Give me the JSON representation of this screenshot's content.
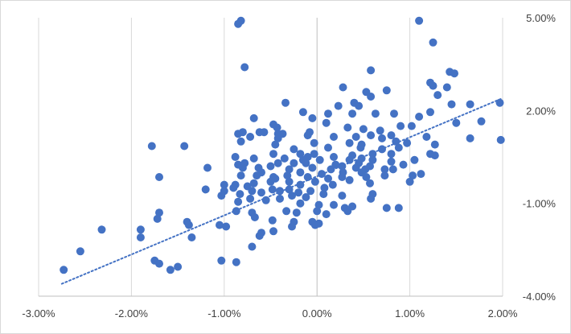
{
  "chart_data": {
    "type": "scatter",
    "title": "",
    "xlabel": "",
    "ylabel": "",
    "xlim": [
      -3.0,
      2.0
    ],
    "ylim": [
      -4.0,
      5.0
    ],
    "x_ticks": [
      -3,
      -2,
      -1,
      0,
      1,
      2
    ],
    "y_ticks": [
      -4,
      -1,
      2,
      5
    ],
    "x_tick_labels": [
      "-3.00%",
      "-2.00%",
      "-1.00%",
      "0.00%",
      "1.00%",
      "2.00%"
    ],
    "y_tick_labels": [
      "-4.00%",
      "-1.00%",
      "2.00%",
      "5.00%"
    ],
    "y_axis_position": "right",
    "gridlines": "vertical-major",
    "legend": "none",
    "marker_color": "#4472c4",
    "trendline": {
      "type": "linear",
      "style": "dotted",
      "color": "#4472c4",
      "start": [
        -2.75,
        -3.6
      ],
      "end": [
        2.0,
        2.4
      ]
    },
    "points": [
      [
        -0.85,
        4.8
      ],
      [
        -0.82,
        4.9
      ],
      [
        -0.78,
        3.4
      ],
      [
        1.1,
        4.9
      ],
      [
        1.25,
        4.2
      ],
      [
        0.58,
        3.3
      ],
      [
        1.43,
        3.25
      ],
      [
        1.48,
        3.2
      ],
      [
        1.22,
        2.9
      ],
      [
        1.25,
        2.8
      ],
      [
        1.4,
        2.75
      ],
      [
        0.28,
        2.75
      ],
      [
        0.53,
        2.6
      ],
      [
        0.75,
        2.65
      ],
      [
        0.58,
        2.45
      ],
      [
        1.3,
        2.5
      ],
      [
        0.45,
        2.15
      ],
      [
        0.4,
        2.25
      ],
      [
        0.23,
        2.15
      ],
      [
        1.45,
        2.2
      ],
      [
        1.65,
        2.2
      ],
      [
        1.97,
        2.25
      ],
      [
        -0.34,
        2.25
      ],
      [
        -0.15,
        1.95
      ],
      [
        0.12,
        1.9
      ],
      [
        0.38,
        1.9
      ],
      [
        0.63,
        1.9
      ],
      [
        0.83,
        1.9
      ],
      [
        1.22,
        1.95
      ],
      [
        1.1,
        1.8
      ],
      [
        -0.68,
        1.75
      ],
      [
        -0.05,
        1.75
      ],
      [
        1.5,
        1.6
      ],
      [
        1.77,
        1.65
      ],
      [
        0.9,
        1.5
      ],
      [
        1.02,
        1.5
      ],
      [
        0.1,
        1.6
      ],
      [
        -0.47,
        1.55
      ],
      [
        -0.43,
        1.45
      ],
      [
        0.33,
        1.45
      ],
      [
        -0.85,
        1.25
      ],
      [
        -0.8,
        1.3
      ],
      [
        -0.62,
        1.3
      ],
      [
        -0.57,
        1.3
      ],
      [
        -0.42,
        1.25
      ],
      [
        -0.37,
        1.25
      ],
      [
        -0.08,
        1.3
      ],
      [
        0.5,
        1.4
      ],
      [
        0.68,
        1.35
      ],
      [
        0.8,
        1.2
      ],
      [
        -0.72,
        1.15
      ],
      [
        -0.42,
        1.1
      ],
      [
        -0.1,
        1.2
      ],
      [
        0.18,
        1.15
      ],
      [
        0.42,
        1.15
      ],
      [
        0.58,
        1.2
      ],
      [
        0.7,
        1.1
      ],
      [
        1.18,
        1.15
      ],
      [
        1.65,
        1.1
      ],
      [
        1.98,
        1.05
      ],
      [
        0.85,
        1.0
      ],
      [
        0.97,
        0.95
      ],
      [
        -0.82,
        1.0
      ],
      [
        -0.45,
        0.9
      ],
      [
        -0.03,
        0.95
      ],
      [
        0.35,
        0.95
      ],
      [
        0.48,
        0.9
      ],
      [
        1.27,
        0.9
      ],
      [
        -1.78,
        0.85
      ],
      [
        -1.43,
        0.85
      ],
      [
        0.47,
        0.8
      ],
      [
        0.7,
        0.75
      ],
      [
        0.88,
        0.8
      ],
      [
        0.12,
        0.8
      ],
      [
        -0.25,
        0.75
      ],
      [
        -0.47,
        0.6
      ],
      [
        -0.03,
        0.6
      ],
      [
        0.18,
        0.5
      ],
      [
        0.38,
        0.55
      ],
      [
        0.6,
        0.6
      ],
      [
        0.8,
        0.6
      ],
      [
        1.22,
        0.6
      ],
      [
        1.27,
        0.55
      ],
      [
        -0.88,
        0.5
      ],
      [
        -0.68,
        0.45
      ],
      [
        -0.35,
        0.45
      ],
      [
        -0.15,
        0.4
      ],
      [
        -0.1,
        0.5
      ],
      [
        -0.18,
        0.6
      ],
      [
        0.03,
        0.4
      ],
      [
        0.35,
        0.4
      ],
      [
        0.48,
        0.45
      ],
      [
        0.6,
        0.4
      ],
      [
        0.8,
        0.35
      ],
      [
        1.05,
        0.4
      ],
      [
        -0.85,
        0.25
      ],
      [
        -0.78,
        0.3
      ],
      [
        -0.5,
        0.2
      ],
      [
        -0.42,
        0.3
      ],
      [
        -0.25,
        0.3
      ],
      [
        -0.12,
        0.3
      ],
      [
        0.2,
        0.25
      ],
      [
        0.45,
        0.3
      ],
      [
        0.57,
        0.2
      ],
      [
        0.93,
        0.25
      ],
      [
        -1.18,
        0.15
      ],
      [
        -0.8,
        0.15
      ],
      [
        -0.63,
        0.15
      ],
      [
        -0.3,
        0.1
      ],
      [
        -0.05,
        0.15
      ],
      [
        0.15,
        0.1
      ],
      [
        0.27,
        0.2
      ],
      [
        0.42,
        0.15
      ],
      [
        0.52,
        0.1
      ],
      [
        0.73,
        0.1
      ],
      [
        0.82,
        0.1
      ],
      [
        -0.6,
        0.0
      ],
      [
        -0.18,
        0.0
      ],
      [
        0.05,
        -0.05
      ],
      [
        0.28,
        0.0
      ],
      [
        0.48,
        0.0
      ],
      [
        1.12,
        -0.05
      ],
      [
        1.03,
        -0.1
      ],
      [
        -1.7,
        -0.15
      ],
      [
        -0.82,
        -0.1
      ],
      [
        -0.65,
        -0.1
      ],
      [
        -0.47,
        -0.15
      ],
      [
        -0.32,
        -0.1
      ],
      [
        -0.1,
        -0.15
      ],
      [
        0.12,
        -0.2
      ],
      [
        0.27,
        -0.15
      ],
      [
        0.35,
        -0.25
      ],
      [
        0.53,
        -0.15
      ],
      [
        0.73,
        -0.1
      ],
      [
        -1.0,
        -0.4
      ],
      [
        -0.88,
        -0.4
      ],
      [
        -0.68,
        -0.35
      ],
      [
        -0.5,
        -0.3
      ],
      [
        -0.45,
        -0.2
      ],
      [
        -0.3,
        -0.3
      ],
      [
        -0.18,
        -0.4
      ],
      [
        -0.02,
        -0.3
      ],
      [
        0.17,
        -0.4
      ],
      [
        0.57,
        -0.35
      ],
      [
        1.0,
        -0.3
      ],
      [
        -1.2,
        -0.55
      ],
      [
        -1.0,
        -0.6
      ],
      [
        -0.9,
        -0.5
      ],
      [
        -0.75,
        -0.45
      ],
      [
        -0.6,
        -0.65
      ],
      [
        -0.48,
        -0.55
      ],
      [
        -0.4,
        -0.6
      ],
      [
        -0.3,
        -0.55
      ],
      [
        -0.2,
        -0.65
      ],
      [
        -0.07,
        -0.6
      ],
      [
        0.08,
        -0.5
      ],
      [
        -0.83,
        -0.7
      ],
      [
        -0.7,
        -0.6
      ],
      [
        -0.27,
        -0.75
      ],
      [
        -0.12,
        -0.8
      ],
      [
        0.07,
        -0.7
      ],
      [
        0.27,
        -0.75
      ],
      [
        0.6,
        -0.7
      ],
      [
        0.58,
        -0.85
      ],
      [
        -1.03,
        -0.75
      ],
      [
        -0.85,
        -0.95
      ],
      [
        -0.72,
        -0.85
      ],
      [
        -0.55,
        -0.9
      ],
      [
        -0.4,
        -0.85
      ],
      [
        -0.18,
        -1.0
      ],
      [
        0.02,
        -1.05
      ],
      [
        0.18,
        -1.05
      ],
      [
        0.3,
        -1.15
      ],
      [
        0.38,
        -1.1
      ],
      [
        0.75,
        -1.15
      ],
      [
        0.88,
        -1.15
      ],
      [
        -1.7,
        -1.3
      ],
      [
        -0.87,
        -1.25
      ],
      [
        -0.7,
        -1.3
      ],
      [
        -0.33,
        -1.25
      ],
      [
        -0.22,
        -1.3
      ],
      [
        0.0,
        -1.25
      ],
      [
        0.1,
        -1.35
      ],
      [
        0.33,
        -1.25
      ],
      [
        -1.72,
        -1.5
      ],
      [
        -0.67,
        -1.45
      ],
      [
        -0.48,
        -1.55
      ],
      [
        -0.25,
        -1.6
      ],
      [
        -0.05,
        -1.6
      ],
      [
        0.02,
        -1.65
      ],
      [
        -1.4,
        -1.6
      ],
      [
        -1.38,
        -1.7
      ],
      [
        -1.05,
        -1.7
      ],
      [
        -0.98,
        -1.75
      ],
      [
        -0.27,
        -1.75
      ],
      [
        -0.02,
        -1.7
      ],
      [
        -2.32,
        -1.85
      ],
      [
        -1.9,
        -1.85
      ],
      [
        -0.6,
        -1.95
      ],
      [
        -0.62,
        -2.05
      ],
      [
        -0.47,
        -1.9
      ],
      [
        -1.9,
        -2.1
      ],
      [
        -1.35,
        -2.1
      ],
      [
        -0.7,
        -2.4
      ],
      [
        -2.55,
        -2.55
      ],
      [
        -1.75,
        -2.85
      ],
      [
        -1.5,
        -3.05
      ],
      [
        -1.7,
        -2.95
      ],
      [
        -1.03,
        -2.85
      ],
      [
        -0.87,
        -2.9
      ],
      [
        -1.58,
        -3.15
      ],
      [
        -2.73,
        -3.15
      ]
    ]
  }
}
